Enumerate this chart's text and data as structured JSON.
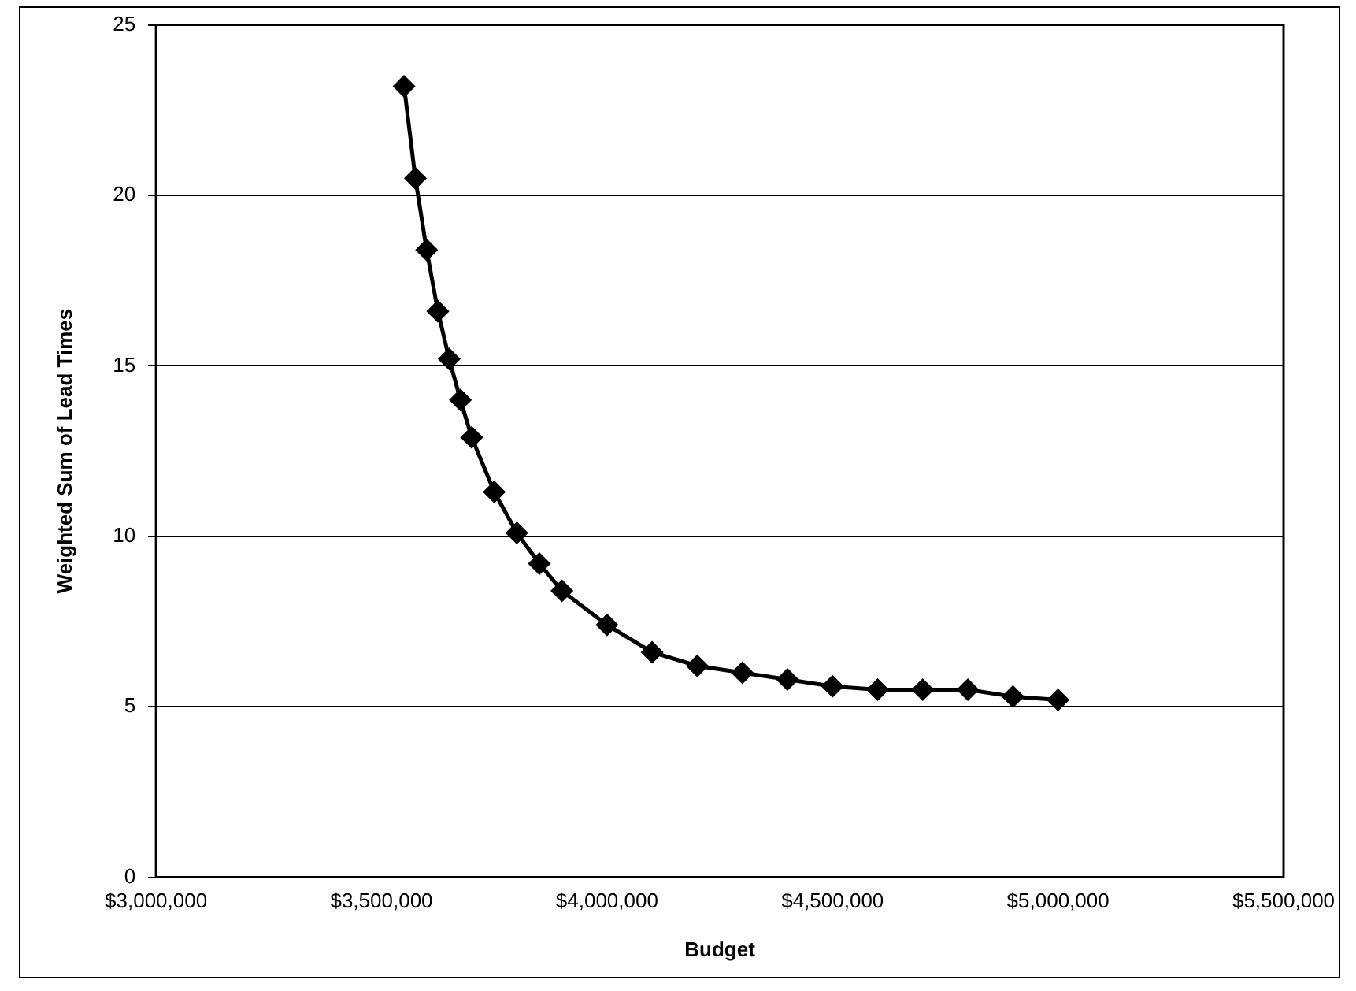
{
  "chart_data": {
    "type": "line",
    "xlabel": "Budget",
    "ylabel": "Weighted Sum of Lead Times",
    "x": [
      3550000,
      3575000,
      3600000,
      3625000,
      3650000,
      3675000,
      3700000,
      3750000,
      3800000,
      3850000,
      3900000,
      4000000,
      4100000,
      4200000,
      4300000,
      4400000,
      4500000,
      4600000,
      4700000,
      4800000,
      4900000,
      5000000
    ],
    "series": [
      {
        "color": "#000000",
        "values": [
          23.2,
          20.5,
          18.4,
          16.6,
          15.2,
          14.0,
          12.9,
          11.3,
          10.1,
          9.2,
          8.4,
          7.4,
          6.6,
          6.2,
          6.0,
          5.8,
          5.6,
          5.5,
          5.5,
          5.5,
          5.3,
          5.2
        ]
      }
    ],
    "xlim": [
      3000000,
      5500000
    ],
    "xticks": [
      {
        "value": 3000000,
        "label": "$3,000,000"
      },
      {
        "value": 3500000,
        "label": "$3,500,000"
      },
      {
        "value": 4000000,
        "label": "$4,000,000"
      },
      {
        "value": 4500000,
        "label": "$4,500,000"
      },
      {
        "value": 5000000,
        "label": "$5,000,000"
      },
      {
        "value": 5500000,
        "label": "$5,500,000"
      }
    ],
    "ylim": [
      0,
      25
    ],
    "yticks": [
      0,
      5,
      10,
      15,
      20,
      25
    ],
    "grid": "y",
    "legend": false,
    "marker": "diamond",
    "line_style": "solid"
  }
}
